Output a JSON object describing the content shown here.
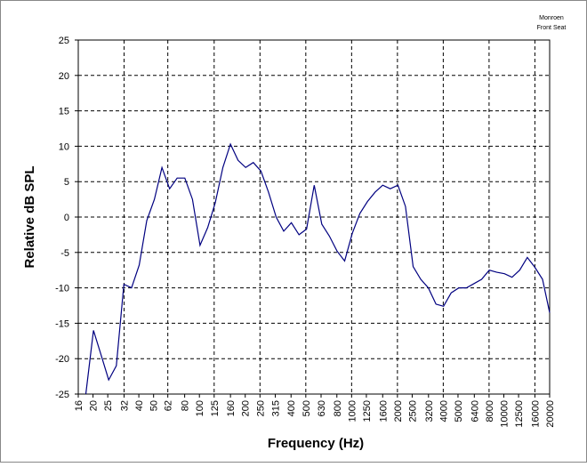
{
  "chart_data": {
    "type": "line",
    "annotations": [
      "Monroen",
      "Front Seat"
    ],
    "x_label": "Frequency (Hz)",
    "y_label": "Relative dB SPL",
    "xscale": "log",
    "xlim": [
      16,
      20000
    ],
    "xticks": [
      16,
      20,
      25,
      32,
      40,
      50,
      62,
      80,
      100,
      125,
      160,
      200,
      250,
      315,
      400,
      500,
      630,
      800,
      1000,
      1250,
      1600,
      2000,
      2500,
      3200,
      4000,
      5000,
      6400,
      8000,
      10000,
      12500,
      16000,
      20000
    ],
    "xgrid": [
      32,
      62,
      125,
      250,
      500,
      1000,
      2000,
      4000,
      8000,
      16000
    ],
    "ylim": [
      -25,
      25
    ],
    "yticks": [
      -25,
      -20,
      -15,
      -10,
      -5,
      0,
      5,
      10,
      15,
      20,
      25
    ],
    "grid": true,
    "color": "#000080",
    "x": [
      17.95,
      20.14,
      22.6,
      25.36,
      28.45,
      31.92,
      35.82,
      40.19,
      45.1,
      50.6,
      56.77,
      63.7,
      71.47,
      80.2,
      89.98,
      100.96,
      113.28,
      127.1,
      142.6,
      160,
      179.5,
      201.4,
      226,
      253.6,
      284.5,
      319.2,
      358.2,
      401.9,
      451,
      506,
      567.7,
      637,
      714.7,
      802,
      899.8,
      1009.6,
      1132.8,
      1271,
      1426,
      1600,
      1795,
      2014,
      2260,
      2536,
      2845,
      3192,
      3582,
      4019,
      4510,
      5060,
      5677,
      6370,
      7147,
      8020,
      8998,
      10096,
      11328,
      12710,
      14260,
      16000,
      17952,
      20000
    ],
    "values": [
      -25,
      -16,
      -19.5,
      -23,
      -21,
      -9.5,
      -10,
      -6.8,
      -0.5,
      2.5,
      7,
      4,
      5.5,
      5.5,
      2.5,
      -4,
      -1.5,
      2,
      7,
      10.3,
      8,
      7,
      7.7,
      6.5,
      3.5,
      0,
      -2,
      -0.8,
      -2.5,
      -1.7,
      4.5,
      -1,
      -2.7,
      -4.8,
      -6.2,
      -2.3,
      0.5,
      2.2,
      3.5,
      4.5,
      4,
      4.5,
      1.5,
      -7,
      -8.8,
      -10,
      -12.3,
      -12.6,
      -10.7,
      -10,
      -10,
      -9.4,
      -8.8,
      -7.5,
      -7.8,
      -8,
      -8.5,
      -7.5,
      -5.7,
      -7.1,
      -8.8,
      -13.5
    ]
  }
}
